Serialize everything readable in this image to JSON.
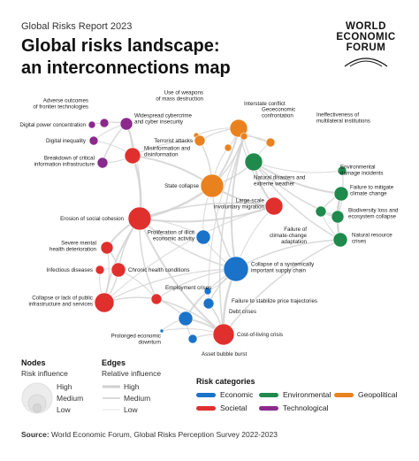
{
  "header": {
    "report": "Global Risks Report 2023",
    "title_line1": "Global risks landscape:",
    "title_line2": "an interconnections map"
  },
  "logo": {
    "line1": "WORLD",
    "line2": "ECONOMIC",
    "line3": "FORUM"
  },
  "colors": {
    "economic": "#1a73c8",
    "environmental": "#1f8a4c",
    "geopolitical": "#e9821e",
    "societal": "#e0302e",
    "technological": "#8b2a8c"
  },
  "nodes": [
    {
      "id": "adverse",
      "label": [
        "Adverse outcomes",
        "of frontier technologies"
      ],
      "cat": "technological"
    },
    {
      "id": "digital-power",
      "label": [
        "Digital power concentration"
      ],
      "cat": "technological"
    },
    {
      "id": "digital-ineq",
      "label": [
        "Digital inequality"
      ],
      "cat": "technological"
    },
    {
      "id": "breakdown",
      "label": [
        "Breakdown of critical",
        "information infrastructure"
      ],
      "cat": "technological"
    },
    {
      "id": "cyber",
      "label": [
        "Widespread cybercrime",
        "and cyber insecurity"
      ],
      "cat": "technological"
    },
    {
      "id": "misinfo",
      "label": [
        "Misinformation and",
        "disinformation"
      ],
      "cat": "societal"
    },
    {
      "id": "wmd",
      "label": [
        "Use of weapons",
        "of mass destruction"
      ],
      "cat": "geopolitical"
    },
    {
      "id": "interstate",
      "label": [
        "Interstate conflict"
      ],
      "cat": "geopolitical"
    },
    {
      "id": "geoecon",
      "label": [
        "Geoeconomic",
        "confrontation"
      ],
      "cat": "geopolitical"
    },
    {
      "id": "ineff",
      "label": [
        "Ineffectiveness of",
        "multilateral institutions"
      ],
      "cat": "geopolitical"
    },
    {
      "id": "terror",
      "label": [
        "Terrorist attacks"
      ],
      "cat": "geopolitical"
    },
    {
      "id": "state-collapse",
      "label": [
        "State collapse"
      ],
      "cat": "geopolitical"
    },
    {
      "id": "natural",
      "label": [
        "Natural disasters and",
        "extreme weather"
      ],
      "cat": "environmental"
    },
    {
      "id": "env-damage",
      "label": [
        "Environmental",
        "damage incidents"
      ],
      "cat": "environmental"
    },
    {
      "id": "climate-mit",
      "label": [
        "Failure to mitigate",
        "climate change"
      ],
      "cat": "environmental"
    },
    {
      "id": "biodiv",
      "label": [
        "Biodiversity loss and",
        "ecosystem collapse"
      ],
      "cat": "environmental"
    },
    {
      "id": "climate-adapt",
      "label": [
        "Failure of",
        "climate-change",
        "adaptation"
      ],
      "cat": "environmental"
    },
    {
      "id": "nat-resource",
      "label": [
        "Natural resource",
        "crises"
      ],
      "cat": "environmental"
    },
    {
      "id": "migration",
      "label": [
        "Large-scale",
        "involuntary migration"
      ],
      "cat": "societal"
    },
    {
      "id": "erosion",
      "label": [
        "Erosion of social cohesion"
      ],
      "cat": "societal"
    },
    {
      "id": "illicit",
      "label": [
        "Proliferation of illicit",
        "economic activity"
      ],
      "cat": "economic"
    },
    {
      "id": "mental",
      "label": [
        "Severe mental",
        "health deterioration"
      ],
      "cat": "societal"
    },
    {
      "id": "infectious",
      "label": [
        "Infectious diseases"
      ],
      "cat": "societal"
    },
    {
      "id": "chronic",
      "label": [
        "Chronic health conditions"
      ],
      "cat": "societal"
    },
    {
      "id": "supply",
      "label": [
        "Collapse of a systemically",
        "important supply chain"
      ],
      "cat": "economic"
    },
    {
      "id": "employment",
      "label": [
        "Employment crises"
      ],
      "cat": "societal"
    },
    {
      "id": "public-infra",
      "label": [
        "Collapse or lack of public",
        "infrastructure and services"
      ],
      "cat": "societal"
    },
    {
      "id": "price",
      "label": [
        "Failure to stabilize price trajectories"
      ],
      "cat": "economic"
    },
    {
      "id": "debt",
      "label": [
        "Debt crises"
      ],
      "cat": "economic"
    },
    {
      "id": "downturn",
      "label": [
        "Prolonged economic",
        "downturn"
      ],
      "cat": "economic"
    },
    {
      "id": "cost-living",
      "label": [
        "Cost-of-living crisis"
      ],
      "cat": "societal"
    },
    {
      "id": "bubble",
      "label": [
        "Asset bubble burst"
      ],
      "cat": "economic"
    },
    {
      "id": "hub-econ",
      "label": [],
      "cat": "economic"
    },
    {
      "id": "hub-geo",
      "label": [],
      "cat": "geopolitical"
    }
  ],
  "legend": {
    "nodes_title": "Nodes",
    "nodes_sub": "Risk influence",
    "nodes_high": "High",
    "nodes_medium": "Medium",
    "nodes_low": "Low",
    "edges_title": "Edges",
    "edges_sub": "Relative influence",
    "edges_high": "High",
    "edges_medium": "Medium",
    "edges_low": "Low",
    "cats_title": "Risk categories",
    "cat_economic": "Economic",
    "cat_environmental": "Environmental",
    "cat_geopolitical": "Geopolitical",
    "cat_societal": "Societal",
    "cat_technological": "Technological"
  },
  "source": {
    "prefix": "Source:",
    "text": " World Economic Forum, Global Risks Perception Survey 2022-2023"
  }
}
